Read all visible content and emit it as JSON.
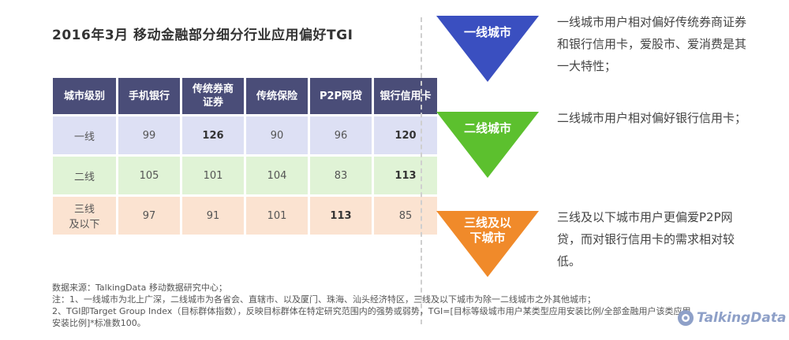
{
  "title": "2016年3月  移动金融部分细分行业应用偏好TGI",
  "table": {
    "headers": [
      "城市级别",
      "手机银行",
      "传统券商\n证券",
      "传统保险",
      "P2P网贷",
      "银行信用卡"
    ],
    "rows": [
      {
        "level": "一线",
        "values": [
          "99",
          "126",
          "90",
          "96",
          "120"
        ],
        "bold": [
          false,
          true,
          false,
          false,
          true
        ]
      },
      {
        "level": "二线",
        "values": [
          "105",
          "101",
          "104",
          "83",
          "113"
        ],
        "bold": [
          false,
          false,
          false,
          false,
          true
        ]
      },
      {
        "level": "三线\n及以下",
        "values": [
          "97",
          "91",
          "101",
          "113",
          "85"
        ],
        "bold": [
          false,
          false,
          false,
          true,
          false
        ]
      }
    ]
  },
  "tiers": [
    {
      "label": "一线城市",
      "color": "#3a4fc0",
      "desc": "一线城市用户相对偏好传统券商证券和银行信用卡，爱股市、爱消费是其一大特性；"
    },
    {
      "label": "二线城市",
      "color": "#5cc02e",
      "desc": "二线城市用户相对偏好银行信用卡；"
    },
    {
      "label": "三线及以\n下城市",
      "color": "#f08a2a",
      "desc": "三线及以下城市用户更偏爱P2P网贷，而对银行信用卡的需求相对较低。"
    }
  ],
  "notes": {
    "source": "数据来源：TalkingData 移动数据研究中心；",
    "note1": "注：1、一线城市为北上广深，二线城市为各省会、直辖市、以及厦门、珠海、汕头经济特区，三线及以下城市为除一二线城市之外其他城市；",
    "note2": "2、TGI即Target Group Index（目标群体指数），反映目标群体在特定研究范围内的强势或弱势，TGI=[目标等级城市用户某类型应用安装比例/全部金融用户该类应用安装比例]*标准数100。"
  },
  "logo": {
    "text": "TalkingData",
    "color": "#8ea0c8"
  }
}
